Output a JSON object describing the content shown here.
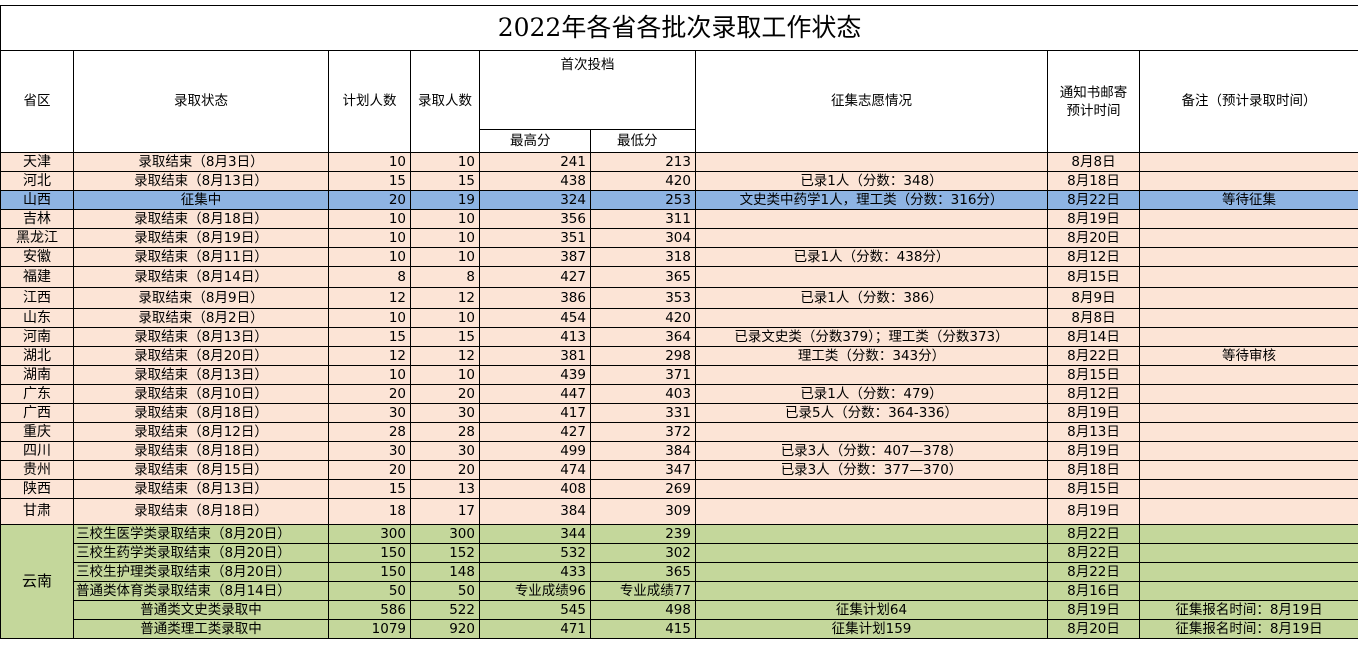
{
  "title": "2022年各省各批次录取工作状态",
  "headers": {
    "province": "省区",
    "status": "录取状态",
    "plan": "计划人数",
    "admitted": "录取人数",
    "first_round": "首次投档",
    "max": "最高分",
    "min": "最低分",
    "supplement": "征集志愿情况",
    "mail": "通知书邮寄\n预计时间",
    "note": "备注（预计录取时间）"
  },
  "rows": [
    {
      "province": "天津",
      "status": "录取结束（8月3日）",
      "plan": "10",
      "admitted": "10",
      "max": "241",
      "min": "213",
      "supplement": "",
      "mail": "8月8日",
      "note": "",
      "style": "peach"
    },
    {
      "province": "河北",
      "status": "录取结束（8月13日）",
      "plan": "15",
      "admitted": "15",
      "max": "438",
      "min": "420",
      "supplement": "已录1人（分数：348）",
      "mail": "8月18日",
      "note": "",
      "style": "peach"
    },
    {
      "province": "山西",
      "status": "征集中",
      "plan": "20",
      "admitted": "19",
      "max": "324",
      "min": "253",
      "supplement": "文史类中药学1人，理工类（分数：316分）",
      "mail": "8月22日",
      "note": "等待征集",
      "style": "blue"
    },
    {
      "province": "吉林",
      "status": "录取结束（8月18日）",
      "plan": "10",
      "admitted": "10",
      "max": "356",
      "min": "311",
      "supplement": "",
      "mail": "8月19日",
      "note": "",
      "style": "peach"
    },
    {
      "province": "黑龙江",
      "status": "录取结束（8月19日）",
      "plan": "10",
      "admitted": "10",
      "max": "351",
      "min": "304",
      "supplement": "",
      "mail": "8月20日",
      "note": "",
      "style": "peach"
    },
    {
      "province": "安徽",
      "status": "录取结束（8月11日）",
      "plan": "10",
      "admitted": "10",
      "max": "387",
      "min": "318",
      "supplement": "已录1人（分数：438分）",
      "mail": "8月12日",
      "note": "",
      "style": "peach"
    },
    {
      "province": "福建",
      "status": "录取结束（8月14日）",
      "plan": "8",
      "admitted": "8",
      "max": "427",
      "min": "365",
      "supplement": "",
      "mail": "8月15日",
      "note": "",
      "style": "peach tall"
    },
    {
      "province": "江西",
      "status": "录取结束（8月9日）",
      "plan": "12",
      "admitted": "12",
      "max": "386",
      "min": "353",
      "supplement": "已录1人（分数：386）",
      "mail": "8月9日",
      "note": "",
      "style": "peach tall"
    },
    {
      "province": "山东",
      "status": "录取结束（8月2日）",
      "plan": "10",
      "admitted": "10",
      "max": "454",
      "min": "420",
      "supplement": "",
      "mail": "8月8日",
      "note": "",
      "style": "peach"
    },
    {
      "province": "河南",
      "status": "录取结束（8月13日）",
      "plan": "15",
      "admitted": "15",
      "max": "413",
      "min": "364",
      "supplement": "已录文史类（分数379）；理工类（分数373）",
      "mail": "8月14日",
      "note": "",
      "style": "peach"
    },
    {
      "province": "湖北",
      "status": "录取结束（8月20日）",
      "plan": "12",
      "admitted": "12",
      "max": "381",
      "min": "298",
      "supplement": "理工类（分数：343分）",
      "mail": "8月22日",
      "note": "等待审核",
      "style": "peach"
    },
    {
      "province": "湖南",
      "status": "录取结束（8月13日）",
      "plan": "10",
      "admitted": "10",
      "max": "439",
      "min": "371",
      "supplement": "",
      "mail": "8月15日",
      "note": "",
      "style": "peach"
    },
    {
      "province": "广东",
      "status": "录取结束（8月10日）",
      "plan": "20",
      "admitted": "20",
      "max": "447",
      "min": "403",
      "supplement": "已录1人（分数：479）",
      "mail": "8月12日",
      "note": "",
      "style": "peach"
    },
    {
      "province": "广西",
      "status": "录取结束（8月18日）",
      "plan": "30",
      "admitted": "30",
      "max": "417",
      "min": "331",
      "supplement": "已录5人（分数：364-336）",
      "mail": "8月19日",
      "note": "",
      "style": "peach"
    },
    {
      "province": "重庆",
      "status": "录取结束（8月12日）",
      "plan": "28",
      "admitted": "28",
      "max": "427",
      "min": "372",
      "supplement": "",
      "mail": "8月13日",
      "note": "",
      "style": "peach"
    },
    {
      "province": "四川",
      "status": "录取结束（8月18日）",
      "plan": "30",
      "admitted": "30",
      "max": "499",
      "min": "384",
      "supplement": "已录3人（分数：407—378）",
      "mail": "8月19日",
      "note": "",
      "style": "peach"
    },
    {
      "province": "贵州",
      "status": "录取结束（8月15日）",
      "plan": "20",
      "admitted": "20",
      "max": "474",
      "min": "347",
      "supplement": "已录3人（分数：377—370）",
      "mail": "8月18日",
      "note": "",
      "style": "peach"
    },
    {
      "province": "陕西",
      "status": "录取结束（8月13日）",
      "plan": "15",
      "admitted": "13",
      "max": "408",
      "min": "269",
      "supplement": "",
      "mail": "8月15日",
      "note": "",
      "style": "peach"
    },
    {
      "province": "甘肃",
      "status": "录取结束（8月18日）",
      "plan": "18",
      "admitted": "17",
      "max": "384",
      "min": "309",
      "supplement": "",
      "mail": "8月19日",
      "note": "",
      "style": "peach tall2"
    }
  ],
  "yunnan": {
    "province": "云南",
    "rows": [
      {
        "status": "三校生医学类录取结束（8月20日）",
        "plan": "300",
        "admitted": "300",
        "max": "344",
        "min": "239",
        "supplement": "",
        "mail": "8月22日",
        "note": "",
        "align": "lt"
      },
      {
        "status": "三校生药学类录取结束（8月20日）",
        "plan": "150",
        "admitted": "152",
        "max": "532",
        "min": "302",
        "supplement": "",
        "mail": "8月22日",
        "note": "",
        "align": "lt"
      },
      {
        "status": "三校生护理类录取结束（8月20日）",
        "plan": "150",
        "admitted": "148",
        "max": "433",
        "min": "365",
        "supplement": "",
        "mail": "8月22日",
        "note": "",
        "align": "lt"
      },
      {
        "status": "普通类体育类录取结束（8月14日）",
        "plan": "50",
        "admitted": "50",
        "max": "专业成绩96",
        "min": "专业成绩77",
        "supplement": "",
        "mail": "8月16日",
        "note": "",
        "align": "lt"
      },
      {
        "status": "普通类文史类录取中",
        "plan": "586",
        "admitted": "522",
        "max": "545",
        "min": "498",
        "supplement": "征集计划64",
        "mail": "8月19日",
        "note": "征集报名时间：8月19日",
        "align": "ct"
      },
      {
        "status": "普通类理工类录取中",
        "plan": "1079",
        "admitted": "920",
        "max": "471",
        "min": "415",
        "supplement": "征集计划159",
        "mail": "8月20日",
        "note": "征集报名时间：8月19日",
        "align": "ct"
      }
    ]
  }
}
